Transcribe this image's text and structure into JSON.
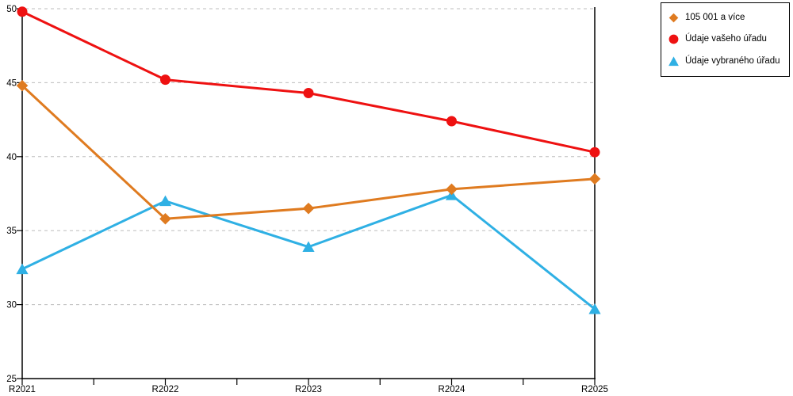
{
  "chart_data": {
    "type": "line",
    "title": "",
    "xlabel": "",
    "ylabel": "",
    "categories": [
      "R2021",
      "R2022",
      "R2023",
      "R2024",
      "R2025"
    ],
    "series": [
      {
        "name": "105 001 a více",
        "marker": "diamond",
        "color": "#DF7B20",
        "values": [
          44.8,
          35.8,
          36.5,
          37.8,
          38.5
        ]
      },
      {
        "name": "Údaje vašeho úřadu",
        "marker": "circle",
        "color": "#EE1111",
        "values": [
          49.8,
          45.2,
          44.3,
          42.4,
          40.3
        ]
      },
      {
        "name": "Údaje vybraného úřadu",
        "marker": "triangle",
        "color": "#2FB0E4",
        "values": [
          32.4,
          37.0,
          33.9,
          37.4,
          29.7
        ]
      }
    ],
    "ylim": [
      25,
      50
    ],
    "ytick_step": 5,
    "ytick_labels": [
      "25",
      "30",
      "35",
      "40",
      "45",
      "50"
    ],
    "grid": "horizontal-dashed",
    "grid_color": "#BDBDBD",
    "axis_color": "#000000",
    "text_color": "#000000",
    "legend_position": "outside-top-right"
  }
}
